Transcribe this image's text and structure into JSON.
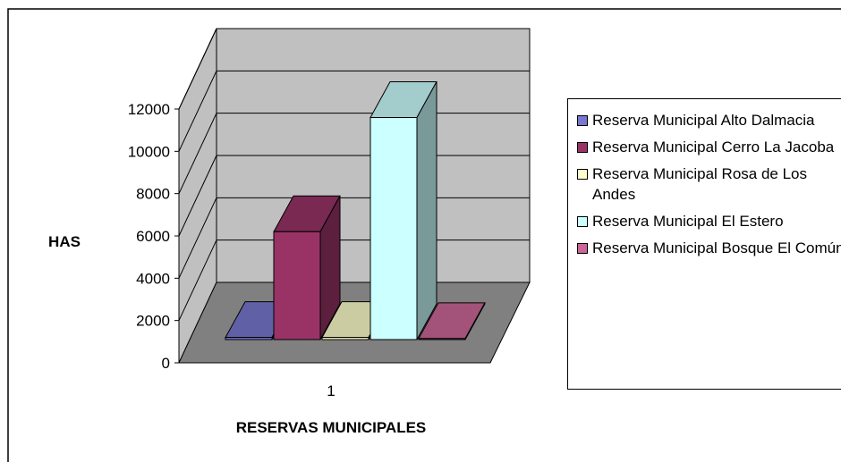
{
  "chart_data": {
    "type": "bar3d",
    "categories": [
      "1"
    ],
    "y_label": "HAS",
    "x_label": "RESERVAS MUNICIPALES",
    "series": [
      {
        "name": "Reserva Municipal Alto Dalmacia",
        "color": "#7878d0",
        "values": [
          100
        ]
      },
      {
        "name": "Reserva Municipal Cerro La Jacoba",
        "color": "#993366",
        "values": [
          5100
        ]
      },
      {
        "name": "Reserva Municipal Rosa de Los Andes",
        "color": "#ffffcc",
        "values": [
          100
        ]
      },
      {
        "name": "Reserva Municipal El Estero",
        "color": "#ccffff",
        "values": [
          10500
        ]
      },
      {
        "name": "Reserva Municipal Bosque El Común",
        "color": "#cc6699",
        "values": [
          50
        ]
      }
    ],
    "ylim": [
      0,
      12000
    ],
    "yticks": [
      0,
      2000,
      4000,
      6000,
      8000,
      10000,
      12000
    ],
    "grid": true
  }
}
